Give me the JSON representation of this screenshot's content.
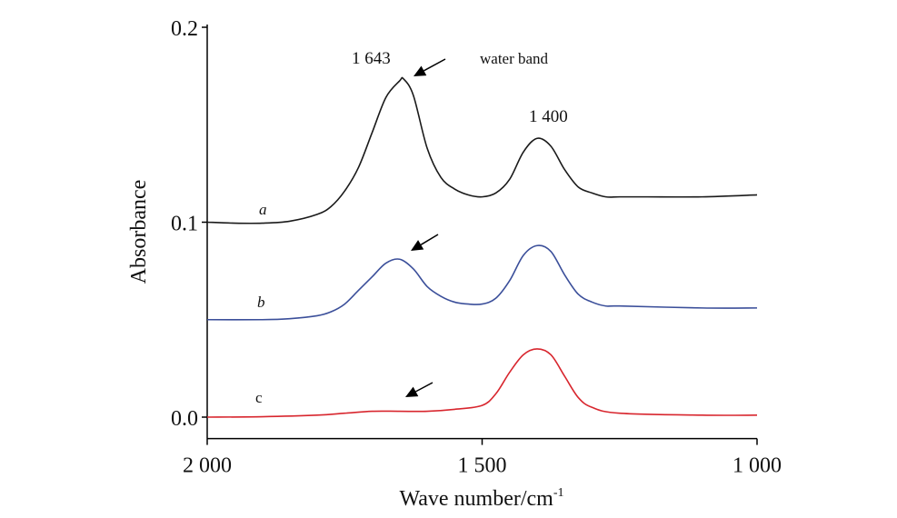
{
  "chart_data": {
    "type": "line",
    "title": "",
    "xlabel": "Wave number/cm",
    "xlabel_sup": "-1",
    "ylabel": "Absorbance",
    "xlim": [
      2000,
      1000
    ],
    "ylim": [
      -0.011,
      0.2
    ],
    "grid": false,
    "x_ticks": [
      {
        "value": 2000,
        "label": "2 000"
      },
      {
        "value": 1500,
        "label": "1 500"
      },
      {
        "value": 1000,
        "label": "1 000"
      }
    ],
    "y_ticks": [
      {
        "value": 0.0,
        "label": "0.0"
      },
      {
        "value": 0.1,
        "label": "0.1"
      },
      {
        "value": 0.2,
        "label": "0.2"
      }
    ],
    "series": [
      {
        "name": "a",
        "color": "#1a1a1a",
        "x": [
          2000,
          1950,
          1900,
          1850,
          1800,
          1775,
          1750,
          1725,
          1700,
          1675,
          1650,
          1643,
          1625,
          1600,
          1575,
          1550,
          1525,
          1500,
          1475,
          1450,
          1425,
          1400,
          1375,
          1350,
          1325,
          1300,
          1275,
          1250,
          1200,
          1100,
          1000
        ],
        "y": [
          0.1,
          0.0995,
          0.0995,
          0.1005,
          0.104,
          0.108,
          0.116,
          0.128,
          0.146,
          0.164,
          0.1725,
          0.1735,
          0.165,
          0.138,
          0.123,
          0.117,
          0.114,
          0.113,
          0.115,
          0.122,
          0.136,
          0.143,
          0.139,
          0.127,
          0.118,
          0.115,
          0.113,
          0.113,
          0.113,
          0.113,
          0.114
        ]
      },
      {
        "name": "b",
        "color": "#3b4f9a",
        "x": [
          2000,
          1900,
          1850,
          1800,
          1775,
          1750,
          1725,
          1700,
          1675,
          1650,
          1625,
          1600,
          1575,
          1550,
          1525,
          1500,
          1475,
          1450,
          1425,
          1400,
          1375,
          1350,
          1325,
          1300,
          1275,
          1250,
          1100,
          1000
        ],
        "y": [
          0.05,
          0.05,
          0.0505,
          0.052,
          0.054,
          0.058,
          0.065,
          0.072,
          0.079,
          0.081,
          0.076,
          0.067,
          0.062,
          0.059,
          0.058,
          0.058,
          0.061,
          0.07,
          0.083,
          0.088,
          0.085,
          0.073,
          0.063,
          0.059,
          0.057,
          0.057,
          0.056,
          0.056
        ]
      },
      {
        "name": "c",
        "color": "#d8262e",
        "x": [
          2000,
          1900,
          1800,
          1750,
          1700,
          1650,
          1600,
          1550,
          1500,
          1475,
          1450,
          1425,
          1400,
          1375,
          1350,
          1325,
          1300,
          1250,
          1100,
          1000
        ],
        "y": [
          0.0,
          0.0002,
          0.001,
          0.002,
          0.003,
          0.003,
          0.003,
          0.004,
          0.006,
          0.012,
          0.023,
          0.032,
          0.035,
          0.032,
          0.021,
          0.01,
          0.005,
          0.002,
          0.001,
          0.001
        ]
      }
    ],
    "annotations": {
      "peak_1643": "1 643",
      "peak_1400": "1 400",
      "water_band": "water band",
      "label_a": "a",
      "label_b": "b",
      "label_c": "c"
    }
  }
}
